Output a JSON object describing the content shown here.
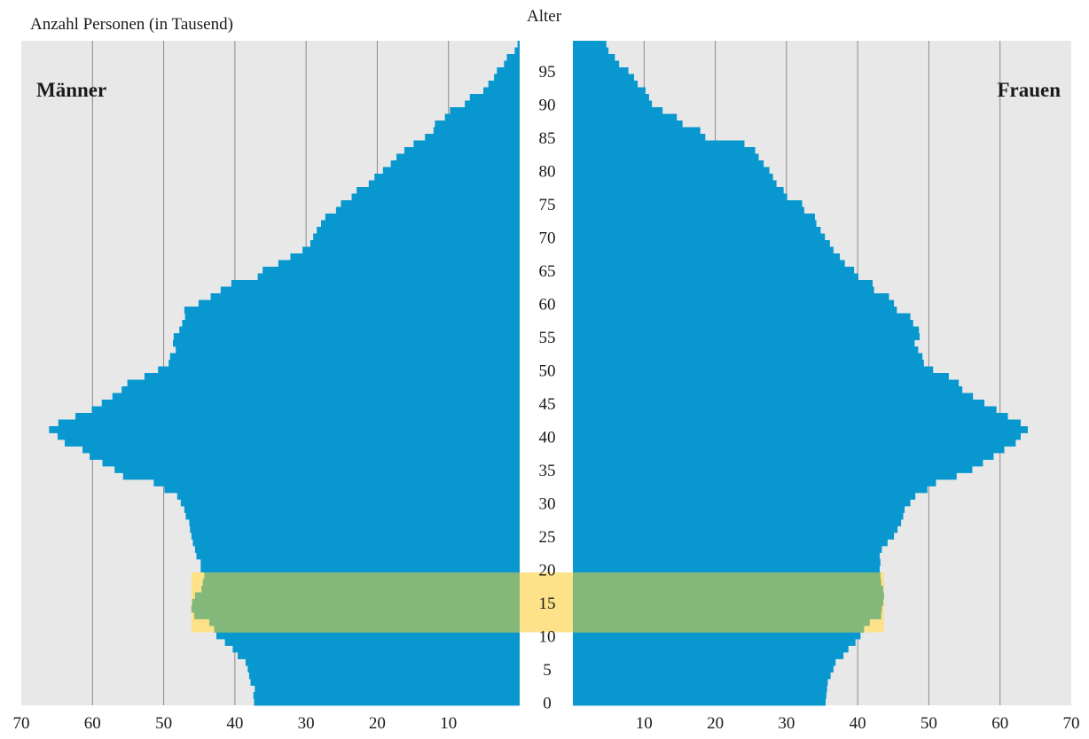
{
  "chart_data": {
    "type": "bar",
    "subtype": "population-pyramid",
    "title": "",
    "ylabel_left": "Anzahl Personen (in Tausend)",
    "age_axis_label": "Alter",
    "x_unit": "Tausend",
    "xlim": [
      0,
      70
    ],
    "ylim": [
      0,
      99
    ],
    "x_ticks_left": [
      70,
      60,
      50,
      40,
      30,
      20,
      10
    ],
    "x_ticks_right": [
      10,
      20,
      30,
      40,
      50,
      60,
      70
    ],
    "age_ticks": [
      0,
      5,
      10,
      15,
      20,
      25,
      30,
      35,
      40,
      45,
      50,
      55,
      60,
      65,
      70,
      75,
      80,
      85,
      90,
      95
    ],
    "grid": true,
    "colors": {
      "bar": "#0898cf",
      "plot_bg": "#e8e8e8",
      "grid": "#8a8a8a",
      "highlight": "#fde28a",
      "highlight_overlap": "#84b87b"
    },
    "highlight_ages": [
      11,
      19
    ],
    "series": [
      {
        "name": "Männer",
        "values": [
          37.3,
          37.4,
          37.2,
          37.8,
          38.0,
          38.2,
          38.5,
          39.6,
          40.3,
          41.4,
          42.6,
          42.9,
          43.6,
          45.7,
          46.1,
          46.0,
          45.6,
          44.7,
          44.5,
          44.3,
          44.8,
          44.8,
          45.4,
          45.6,
          45.9,
          46.1,
          46.3,
          46.4,
          46.9,
          47.1,
          47.6,
          48.1,
          49.9,
          51.4,
          55.7,
          56.9,
          58.6,
          60.4,
          61.4,
          63.9,
          64.9,
          66.1,
          64.8,
          62.4,
          60.1,
          58.7,
          57.2,
          55.9,
          55.1,
          52.7,
          50.8,
          49.3,
          49.1,
          48.3,
          48.7,
          48.6,
          47.8,
          47.4,
          47.0,
          47.1,
          45.1,
          43.4,
          42.0,
          40.5,
          36.8,
          36.1,
          33.9,
          32.2,
          30.5,
          29.4,
          29.0,
          28.5,
          27.9,
          27.3,
          25.8,
          25.1,
          23.6,
          22.9,
          21.2,
          20.4,
          19.2,
          18.1,
          17.3,
          16.2,
          14.9,
          13.3,
          12.1,
          11.9,
          10.5,
          9.8,
          7.7,
          7.0,
          5.1,
          4.4,
          3.6,
          3.2,
          2.2,
          1.8,
          0.7,
          0.3
        ]
      },
      {
        "name": "Frauen",
        "values": [
          35.5,
          35.6,
          35.7,
          35.8,
          36.2,
          36.6,
          36.9,
          38.0,
          38.7,
          39.7,
          40.4,
          40.9,
          41.7,
          43.3,
          43.4,
          43.6,
          43.7,
          43.6,
          43.3,
          43.2,
          43.1,
          43.2,
          43.1,
          43.4,
          44.2,
          45.1,
          45.6,
          46.1,
          46.4,
          46.6,
          47.4,
          48.1,
          49.8,
          51.0,
          53.9,
          56.1,
          57.6,
          59.1,
          60.6,
          62.2,
          62.9,
          63.9,
          62.9,
          61.1,
          59.5,
          57.8,
          56.2,
          54.7,
          54.2,
          52.8,
          50.6,
          49.3,
          49.1,
          48.5,
          48.0,
          48.7,
          48.6,
          47.8,
          47.4,
          45.5,
          45.1,
          44.4,
          42.3,
          42.1,
          40.1,
          39.5,
          38.2,
          37.5,
          36.6,
          36.1,
          35.4,
          34.8,
          34.2,
          34.0,
          32.5,
          32.2,
          30.1,
          29.6,
          28.6,
          28.1,
          27.6,
          26.8,
          26.1,
          25.6,
          24.1,
          18.6,
          17.9,
          15.4,
          14.6,
          12.6,
          11.1,
          10.7,
          10.2,
          9.1,
          8.6,
          7.8,
          6.5,
          5.9,
          5.0,
          4.7
        ]
      }
    ]
  }
}
